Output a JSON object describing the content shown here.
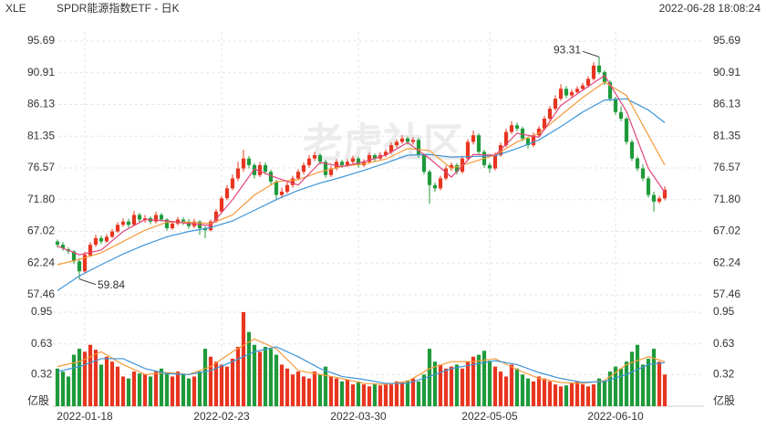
{
  "chart_data": {
    "type": "candlestick",
    "symbol": "XLE",
    "title": "SPDR能源指数ETF - 日K",
    "timestamp": "2022-06-28 18:08:24",
    "watermark": "老虎社区",
    "up_color": "#e8351f",
    "down_color": "#1f9a3a",
    "grid": true,
    "ylim": [
      57.46,
      95.69
    ],
    "yticks": [
      57.46,
      62.24,
      67.02,
      {
        "value": 71.8,
        "label": "71.80"
      },
      76.57,
      81.35,
      86.13,
      90.91,
      95.69
    ],
    "xticks": [
      {
        "value": 5,
        "label": "2022-01-18"
      },
      {
        "value": 30,
        "label": "2022-02-23"
      },
      {
        "value": 55,
        "label": "2022-03-30"
      },
      {
        "value": 79,
        "label": "2022-05-05"
      },
      {
        "value": 102,
        "label": "2022-06-10"
      }
    ],
    "ohlc": [
      [
        65.5,
        65.8,
        64.6,
        65.0
      ],
      [
        65.0,
        65.4,
        64.1,
        64.5
      ],
      [
        64.3,
        64.6,
        63.6,
        64.0
      ],
      [
        64.0,
        64.2,
        62.1,
        62.5
      ],
      [
        62.5,
        63.0,
        59.84,
        61.0
      ],
      [
        61.0,
        63.9,
        60.7,
        63.5
      ],
      [
        63.4,
        65.4,
        63.2,
        65.0
      ],
      [
        65.0,
        66.5,
        64.7,
        66.0
      ],
      [
        66.0,
        66.4,
        65.1,
        65.5
      ],
      [
        65.5,
        66.6,
        65.3,
        66.2
      ],
      [
        66.2,
        67.4,
        66.0,
        67.0
      ],
      [
        67.0,
        68.4,
        66.8,
        68.0
      ],
      [
        68.0,
        69.0,
        67.7,
        68.5
      ],
      [
        68.5,
        68.9,
        67.6,
        68.0
      ],
      [
        68.0,
        70.1,
        67.8,
        69.5
      ],
      [
        69.5,
        69.8,
        68.4,
        68.8
      ],
      [
        68.8,
        69.5,
        68.3,
        69.0
      ],
      [
        69.0,
        69.3,
        68.1,
        68.5
      ],
      [
        68.5,
        70.0,
        68.2,
        69.5
      ],
      [
        69.5,
        69.8,
        68.5,
        68.8
      ],
      [
        68.8,
        69.0,
        67.1,
        67.5
      ],
      [
        67.5,
        68.6,
        67.2,
        68.2
      ],
      [
        68.2,
        69.2,
        67.9,
        68.8
      ],
      [
        68.8,
        69.1,
        68.0,
        68.5
      ],
      [
        68.5,
        68.9,
        67.4,
        67.8
      ],
      [
        67.8,
        68.9,
        67.5,
        68.5
      ],
      [
        68.5,
        68.7,
        66.5,
        67.5
      ],
      [
        67.5,
        67.8,
        66.0,
        67.2
      ],
      [
        67.2,
        68.8,
        67.0,
        68.5
      ],
      [
        68.5,
        70.4,
        68.3,
        70.0
      ],
      [
        70.0,
        72.4,
        69.8,
        72.0
      ],
      [
        72.0,
        74.0,
        71.7,
        73.5
      ],
      [
        73.5,
        75.6,
        73.2,
        75.0
      ],
      [
        75.0,
        77.5,
        74.6,
        76.5
      ],
      [
        76.5,
        79.3,
        76.0,
        78.0
      ],
      [
        78.0,
        78.4,
        76.5,
        77.0
      ],
      [
        77.0,
        77.3,
        75.0,
        75.5
      ],
      [
        75.5,
        77.5,
        75.2,
        77.0
      ],
      [
        77.0,
        77.4,
        75.6,
        76.0
      ],
      [
        76.0,
        76.3,
        74.0,
        74.5
      ],
      [
        74.5,
        74.8,
        71.7,
        72.5
      ],
      [
        72.5,
        73.6,
        72.0,
        73.0
      ],
      [
        73.0,
        74.5,
        72.7,
        74.0
      ],
      [
        74.0,
        75.4,
        73.6,
        75.0
      ],
      [
        75.0,
        76.4,
        74.7,
        76.0
      ],
      [
        76.0,
        77.4,
        75.6,
        77.0
      ],
      [
        77.0,
        78.5,
        76.6,
        78.0
      ],
      [
        78.0,
        79.0,
        77.6,
        78.5
      ],
      [
        78.5,
        78.8,
        77.1,
        77.5
      ],
      [
        77.5,
        77.8,
        75.1,
        75.5
      ],
      [
        75.5,
        76.9,
        75.2,
        76.5
      ],
      [
        76.5,
        77.9,
        76.2,
        77.5
      ],
      [
        77.5,
        77.8,
        76.6,
        77.0
      ],
      [
        77.0,
        77.9,
        76.7,
        77.5
      ],
      [
        77.5,
        78.4,
        77.2,
        78.0
      ],
      [
        78.0,
        78.3,
        76.6,
        77.0
      ],
      [
        77.0,
        77.9,
        76.7,
        77.5
      ],
      [
        77.5,
        78.9,
        77.2,
        78.5
      ],
      [
        78.5,
        78.8,
        77.6,
        78.0
      ],
      [
        78.0,
        78.9,
        77.7,
        78.5
      ],
      [
        78.5,
        79.4,
        78.2,
        79.0
      ],
      [
        79.0,
        80.4,
        78.7,
        80.0
      ],
      [
        80.0,
        80.9,
        79.6,
        80.5
      ],
      [
        80.5,
        81.5,
        80.2,
        81.0
      ],
      [
        81.0,
        81.3,
        80.1,
        80.5
      ],
      [
        80.5,
        81.2,
        80.1,
        80.8
      ],
      [
        80.8,
        81.1,
        78.1,
        78.5
      ],
      [
        78.5,
        78.8,
        75.6,
        76.0
      ],
      [
        76.0,
        76.3,
        71.2,
        74.0
      ],
      [
        74.0,
        74.4,
        73.0,
        73.5
      ],
      [
        73.5,
        75.4,
        73.2,
        75.0
      ],
      [
        75.0,
        76.9,
        74.7,
        76.5
      ],
      [
        76.5,
        77.4,
        76.1,
        77.0
      ],
      [
        77.0,
        77.3,
        75.6,
        76.0
      ],
      [
        76.0,
        78.4,
        75.7,
        78.0
      ],
      [
        78.0,
        80.9,
        77.7,
        80.5
      ],
      [
        80.5,
        82.2,
        80.1,
        81.5
      ],
      [
        81.5,
        81.8,
        78.6,
        79.0
      ],
      [
        79.0,
        79.3,
        76.6,
        77.0
      ],
      [
        77.0,
        77.4,
        75.8,
        76.5
      ],
      [
        76.5,
        78.9,
        76.2,
        78.5
      ],
      [
        78.5,
        80.4,
        78.2,
        80.0
      ],
      [
        80.0,
        82.5,
        79.7,
        82.0
      ],
      [
        82.0,
        83.6,
        81.7,
        83.0
      ],
      [
        83.0,
        83.4,
        82.1,
        82.5
      ],
      [
        82.5,
        82.8,
        80.6,
        81.0
      ],
      [
        81.0,
        81.3,
        79.5,
        80.0
      ],
      [
        80.0,
        81.9,
        79.7,
        81.5
      ],
      [
        81.5,
        82.9,
        81.2,
        82.5
      ],
      [
        82.5,
        84.4,
        82.2,
        84.0
      ],
      [
        84.0,
        85.9,
        83.7,
        85.5
      ],
      [
        85.5,
        87.5,
        85.2,
        87.0
      ],
      [
        87.0,
        89.2,
        86.7,
        88.5
      ],
      [
        88.5,
        88.9,
        87.1,
        87.5
      ],
      [
        87.5,
        88.4,
        87.2,
        88.0
      ],
      [
        88.0,
        88.9,
        87.7,
        88.5
      ],
      [
        88.5,
        89.4,
        88.2,
        89.0
      ],
      [
        89.0,
        90.4,
        88.7,
        90.0
      ],
      [
        90.0,
        92.5,
        89.7,
        92.0
      ],
      [
        92.0,
        93.31,
        90.7,
        91.0
      ],
      [
        91.0,
        91.3,
        89.1,
        89.5
      ],
      [
        89.5,
        89.8,
        86.6,
        87.0
      ],
      [
        87.0,
        87.3,
        84.6,
        85.0
      ],
      [
        85.0,
        85.9,
        83.6,
        84.0
      ],
      [
        84.0,
        84.3,
        80.1,
        80.5
      ],
      [
        80.5,
        80.8,
        77.6,
        78.0
      ],
      [
        78.0,
        78.3,
        76.1,
        76.5
      ],
      [
        76.5,
        77.1,
        74.6,
        75.0
      ],
      [
        75.0,
        75.3,
        72.1,
        72.5
      ],
      [
        72.5,
        73.0,
        70.0,
        71.5
      ],
      [
        71.5,
        72.4,
        71.2,
        72.0
      ],
      [
        72.0,
        73.8,
        71.7,
        73.3
      ]
    ],
    "ma": [
      {
        "color": "#3d95d8",
        "index": [
          0,
          4,
          8,
          12,
          16,
          20,
          24,
          28,
          32,
          36,
          40,
          44,
          48,
          52,
          56,
          60,
          64,
          68,
          72,
          76,
          80,
          84,
          88,
          92,
          96,
          100,
          104,
          108,
          111
        ],
        "values": [
          58.1,
          60.3,
          62.0,
          63.6,
          65.0,
          66.2,
          67.0,
          67.6,
          68.6,
          70.2,
          71.8,
          73.2,
          74.3,
          75.2,
          76.2,
          77.3,
          78.5,
          78.6,
          78.2,
          78.3,
          78.4,
          79.5,
          80.8,
          82.8,
          85.0,
          86.8,
          87.0,
          85.3,
          83.4
        ]
      },
      {
        "color": "#f59a3b",
        "index": [
          0,
          4,
          8,
          12,
          16,
          20,
          24,
          28,
          32,
          36,
          40,
          44,
          48,
          52,
          56,
          60,
          64,
          68,
          72,
          76,
          80,
          84,
          88,
          92,
          96,
          100,
          104,
          108,
          111
        ],
        "values": [
          62.0,
          62.8,
          63.8,
          65.5,
          67.2,
          68.4,
          68.4,
          68.2,
          69.5,
          72.5,
          74.5,
          74.8,
          76.0,
          76.8,
          77.2,
          77.9,
          79.5,
          79.2,
          76.5,
          77.5,
          78.5,
          80.5,
          81.8,
          84.5,
          87.2,
          89.5,
          87.5,
          81.5,
          77.0
        ]
      },
      {
        "color": "#e0457b",
        "index": [
          0,
          4,
          8,
          12,
          16,
          20,
          24,
          28,
          32,
          36,
          40,
          44,
          48,
          52,
          56,
          60,
          64,
          68,
          72,
          76,
          80,
          84,
          88,
          92,
          96,
          100,
          104,
          108,
          111
        ],
        "values": [
          64.8,
          63.5,
          64.2,
          67.0,
          68.8,
          68.6,
          68.2,
          67.9,
          71.8,
          76.4,
          75.1,
          74.0,
          77.4,
          76.8,
          77.5,
          78.5,
          80.4,
          78.0,
          75.2,
          78.6,
          78.5,
          81.8,
          81.2,
          86.0,
          88.3,
          90.5,
          85.1,
          76.5,
          72.9
        ]
      }
    ],
    "volume": {
      "unit": "亿股",
      "ylim": [
        0,
        0.95
      ],
      "yticks": [
        0.32,
        0.63,
        0.95
      ],
      "values": [
        0.38,
        0.35,
        0.3,
        0.52,
        0.58,
        0.55,
        0.62,
        0.57,
        0.42,
        0.5,
        0.45,
        0.4,
        0.3,
        0.28,
        0.35,
        0.33,
        0.32,
        0.3,
        0.35,
        0.38,
        0.33,
        0.3,
        0.35,
        0.32,
        0.28,
        0.3,
        0.35,
        0.58,
        0.5,
        0.45,
        0.42,
        0.4,
        0.48,
        0.6,
        0.95,
        0.75,
        0.62,
        0.55,
        0.6,
        0.58,
        0.52,
        0.42,
        0.38,
        0.32,
        0.35,
        0.3,
        0.28,
        0.35,
        0.32,
        0.4,
        0.3,
        0.28,
        0.25,
        0.27,
        0.22,
        0.25,
        0.22,
        0.2,
        0.22,
        0.21,
        0.23,
        0.22,
        0.25,
        0.24,
        0.26,
        0.28,
        0.25,
        0.32,
        0.58,
        0.45,
        0.42,
        0.38,
        0.4,
        0.42,
        0.38,
        0.45,
        0.5,
        0.52,
        0.56,
        0.46,
        0.4,
        0.35,
        0.3,
        0.42,
        0.38,
        0.32,
        0.28,
        0.25,
        0.3,
        0.28,
        0.25,
        0.22,
        0.2,
        0.21,
        0.23,
        0.25,
        0.22,
        0.2,
        0.22,
        0.28,
        0.26,
        0.35,
        0.4,
        0.38,
        0.45,
        0.55,
        0.62,
        0.42,
        0.48,
        0.58,
        0.45,
        0.32
      ],
      "ma": [
        {
          "color": "#f59a3b",
          "index": [
            0,
            4,
            8,
            12,
            16,
            20,
            24,
            28,
            32,
            36,
            40,
            44,
            48,
            52,
            56,
            60,
            64,
            68,
            72,
            76,
            80,
            84,
            88,
            92,
            96,
            100,
            104,
            108,
            111
          ],
          "values": [
            0.4,
            0.45,
            0.55,
            0.42,
            0.32,
            0.34,
            0.32,
            0.4,
            0.55,
            0.68,
            0.58,
            0.36,
            0.32,
            0.28,
            0.23,
            0.22,
            0.25,
            0.38,
            0.45,
            0.45,
            0.48,
            0.37,
            0.28,
            0.24,
            0.23,
            0.26,
            0.42,
            0.5,
            0.45
          ]
        },
        {
          "color": "#3d95d8",
          "index": [
            0,
            4,
            8,
            12,
            16,
            20,
            24,
            28,
            32,
            36,
            40,
            44,
            48,
            52,
            56,
            60,
            64,
            68,
            72,
            76,
            80,
            84,
            88,
            92,
            96,
            100,
            104,
            108,
            111
          ],
          "values": [
            0.35,
            0.4,
            0.48,
            0.48,
            0.38,
            0.33,
            0.32,
            0.36,
            0.45,
            0.55,
            0.6,
            0.5,
            0.38,
            0.3,
            0.27,
            0.23,
            0.23,
            0.3,
            0.38,
            0.42,
            0.46,
            0.42,
            0.34,
            0.28,
            0.24,
            0.25,
            0.32,
            0.42,
            0.44
          ]
        }
      ]
    }
  }
}
